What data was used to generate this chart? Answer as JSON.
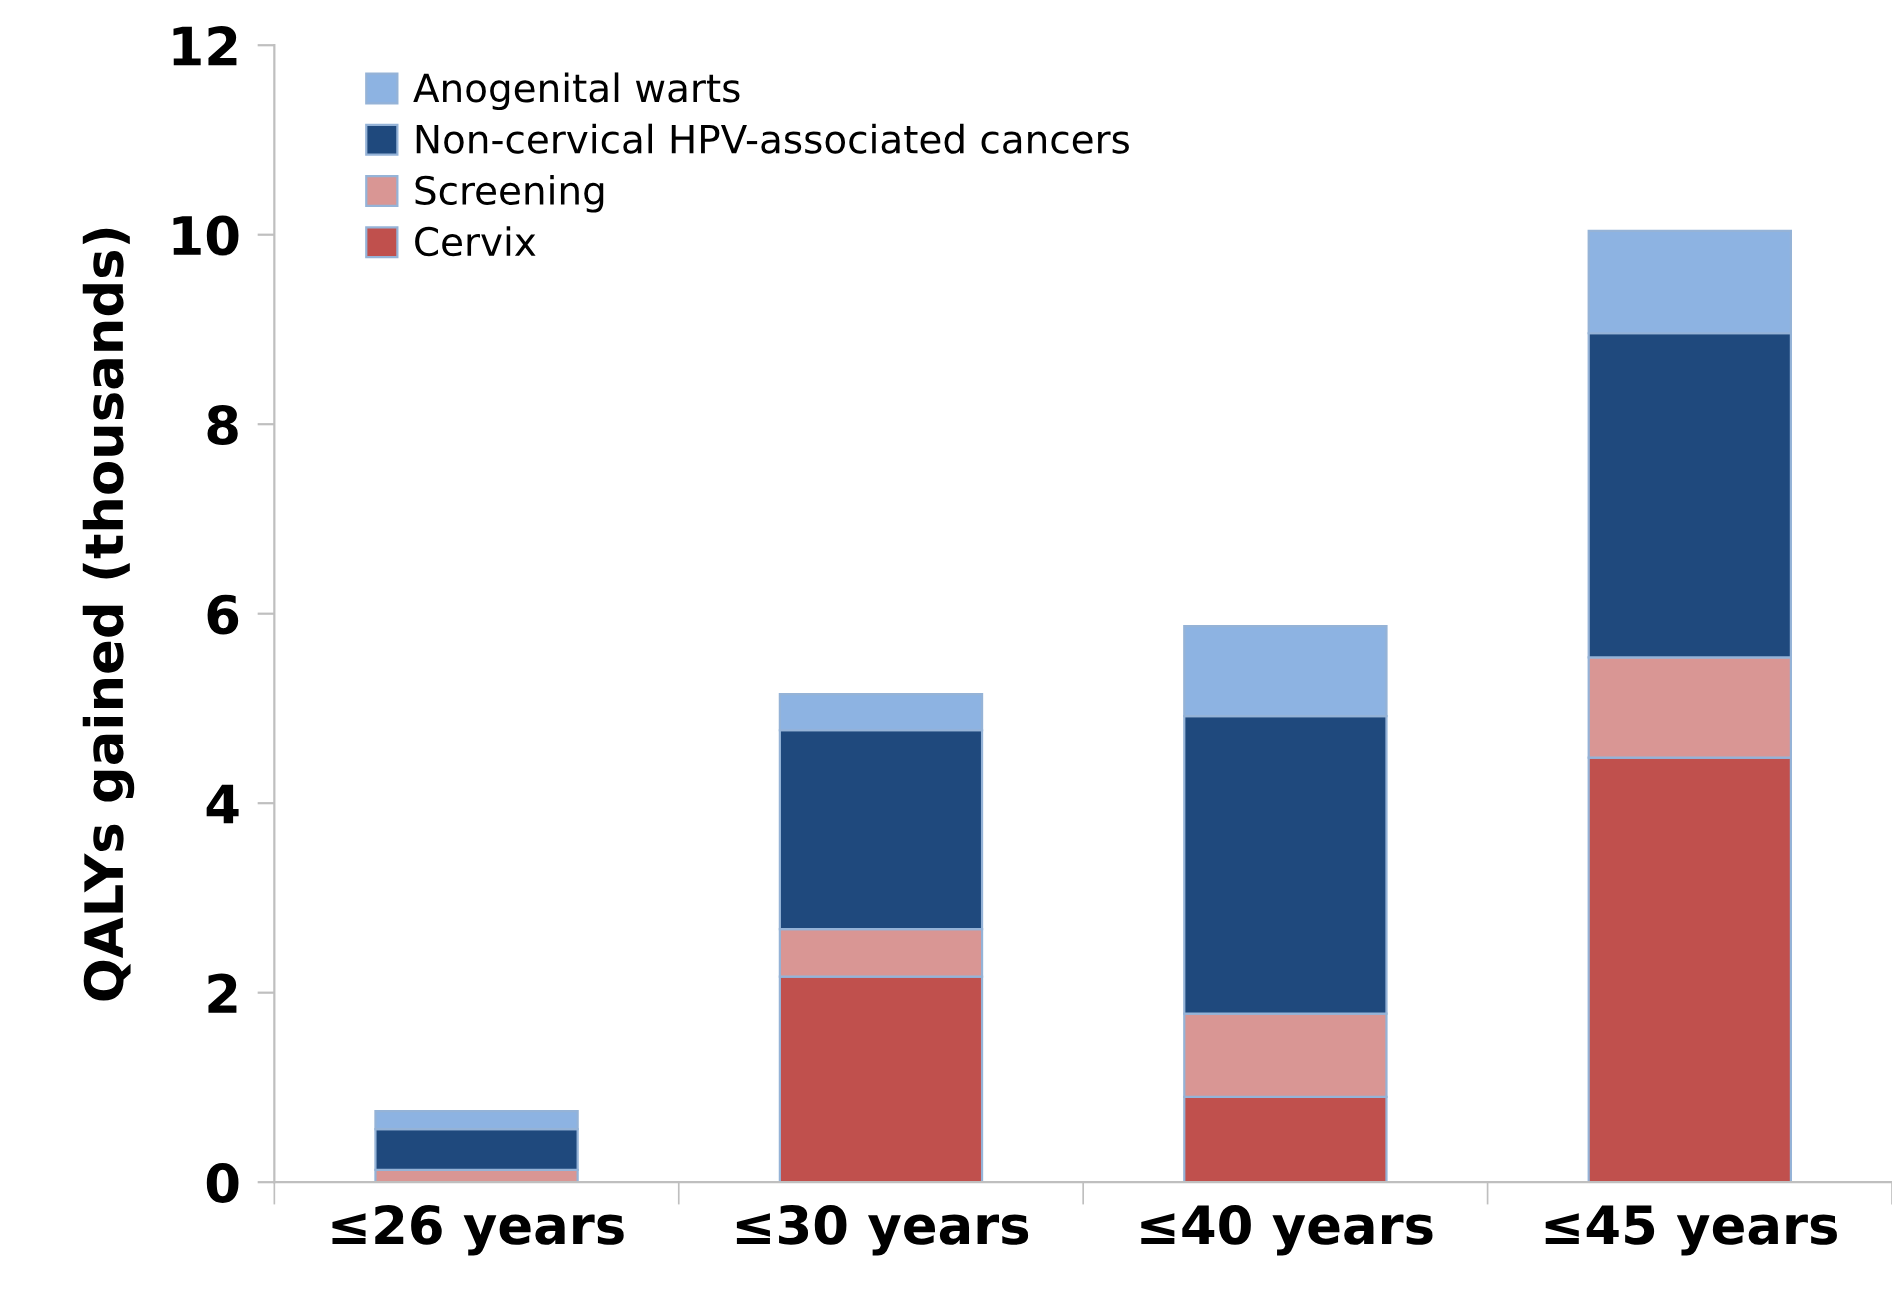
{
  "chart_data": {
    "type": "bar",
    "stacked": true,
    "ylabel": "QALYs gained (thousands)",
    "categories": [
      "≤26 years",
      "≤30 years",
      "≤40 years",
      "≤45 years"
    ],
    "series": [
      {
        "name": "Cervix",
        "color": "#c0504d",
        "values": [
          0,
          2.17,
          0.9,
          4.48
        ]
      },
      {
        "name": "Screening",
        "color": "#d99694",
        "values": [
          0.13,
          0.5,
          0.88,
          1.06
        ]
      },
      {
        "name": "Non-cervical HPV-associated cancers",
        "color": "#1f497d",
        "values": [
          0.43,
          2.1,
          3.14,
          3.42
        ]
      },
      {
        "name": "Anogenital warts",
        "color": "#8db3e2",
        "values": [
          0.19,
          0.38,
          0.95,
          1.08
        ]
      }
    ],
    "ylim": [
      0,
      12
    ],
    "yticks": [
      0,
      2,
      4,
      6,
      8,
      10,
      12
    ],
    "grid": false,
    "legend": "top left"
  }
}
